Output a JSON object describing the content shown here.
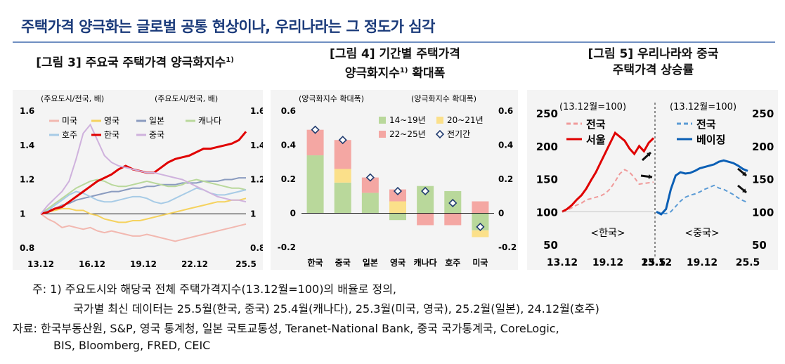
{
  "header": {
    "title": "주택가격 양극화는 글로벌 공통 현상이나, 우리나라는 그 정도가 심각"
  },
  "fig3": {
    "title": "[그림 3] 주요국 주택가격 양극화지수",
    "title_sup": "1)",
    "axis_label_left": "(주요도시/전국, 배)",
    "axis_label_right": "(주요도시/전국, 배)",
    "chart_data": {
      "type": "line",
      "ylim": [
        0.8,
        1.6
      ],
      "y_ticks": [
        "0.8",
        "1",
        "1.2",
        "1.4",
        "1.6"
      ],
      "x_ticks": [
        "13.12",
        "16.12",
        "19.12",
        "22.12",
        "25.5"
      ],
      "series": [
        {
          "name": "미국",
          "color": "#f2b8b0",
          "values": [
            1.0,
            0.97,
            0.95,
            0.92,
            0.93,
            0.92,
            0.91,
            0.92,
            0.9,
            0.89,
            0.9,
            0.89,
            0.88,
            0.87,
            0.87,
            0.88,
            0.87,
            0.86,
            0.85,
            0.84,
            0.85,
            0.86,
            0.87,
            0.88,
            0.89,
            0.9,
            0.91,
            0.92,
            0.93,
            0.94
          ]
        },
        {
          "name": "영국",
          "color": "#f5d25e",
          "values": [
            1.0,
            1.01,
            1.02,
            1.03,
            1.03,
            1.02,
            1.02,
            1.0,
            0.99,
            0.97,
            0.96,
            0.95,
            0.95,
            0.96,
            0.96,
            0.97,
            0.98,
            0.99,
            1.0,
            1.01,
            1.02,
            1.03,
            1.04,
            1.05,
            1.06,
            1.07,
            1.07,
            1.08,
            1.08,
            1.09
          ]
        },
        {
          "name": "일본",
          "color": "#8a9bbf",
          "values": [
            1.0,
            1.02,
            1.03,
            1.05,
            1.06,
            1.08,
            1.09,
            1.1,
            1.11,
            1.12,
            1.13,
            1.13,
            1.14,
            1.15,
            1.15,
            1.16,
            1.16,
            1.17,
            1.17,
            1.17,
            1.18,
            1.18,
            1.18,
            1.19,
            1.19,
            1.19,
            1.2,
            1.2,
            1.21,
            1.21
          ]
        },
        {
          "name": "캐나다",
          "color": "#b9d89b",
          "values": [
            1.0,
            1.03,
            1.06,
            1.09,
            1.12,
            1.15,
            1.17,
            1.19,
            1.2,
            1.19,
            1.17,
            1.16,
            1.16,
            1.17,
            1.18,
            1.19,
            1.18,
            1.17,
            1.16,
            1.16,
            1.17,
            1.19,
            1.2,
            1.19,
            1.18,
            1.17,
            1.16,
            1.15,
            1.15,
            1.14
          ]
        },
        {
          "name": "호주",
          "color": "#a7cbe6",
          "values": [
            1.0,
            1.02,
            1.05,
            1.08,
            1.11,
            1.13,
            1.12,
            1.1,
            1.08,
            1.07,
            1.07,
            1.08,
            1.09,
            1.1,
            1.1,
            1.09,
            1.07,
            1.06,
            1.07,
            1.09,
            1.11,
            1.13,
            1.15,
            1.14,
            1.12,
            1.11,
            1.11,
            1.12,
            1.13,
            1.14
          ]
        },
        {
          "name": "한국",
          "color": "#e00000",
          "values": [
            1.0,
            1.01,
            1.03,
            1.04,
            1.07,
            1.1,
            1.13,
            1.16,
            1.19,
            1.21,
            1.23,
            1.26,
            1.28,
            1.26,
            1.25,
            1.24,
            1.24,
            1.27,
            1.3,
            1.32,
            1.33,
            1.34,
            1.36,
            1.38,
            1.38,
            1.39,
            1.4,
            1.41,
            1.43,
            1.48
          ]
        },
        {
          "name": "중국",
          "color": "#cfb2dd",
          "values": [
            1.0,
            1.05,
            1.09,
            1.13,
            1.19,
            1.32,
            1.47,
            1.52,
            1.43,
            1.34,
            1.3,
            1.28,
            1.27,
            1.26,
            1.25,
            1.24,
            1.24,
            1.23,
            1.22,
            1.21,
            1.2,
            1.18,
            1.16,
            1.14,
            1.12,
            1.1,
            1.09,
            1.08,
            1.08,
            1.07
          ]
        }
      ]
    }
  },
  "fig4": {
    "title_line1": "[그림 4] 기간별 주택가격",
    "title_line2": "양극화지수",
    "title_sup": "1)",
    "title_line2b": "확대폭",
    "axis_label_left": "(양극화지수 확대폭)",
    "axis_label_right": "(양극화지수 확대폭)",
    "chart_data": {
      "type": "bar",
      "ylim": [
        -0.2,
        0.6
      ],
      "y_ticks": [
        "-0.2",
        "0",
        "0.2",
        "0.4",
        "0.6"
      ],
      "categories": [
        "한국",
        "중국",
        "일본",
        "영국",
        "캐나다",
        "호주",
        "미국"
      ],
      "series": [
        {
          "name": "14~19년",
          "color": "#b9d89b",
          "values": [
            0.34,
            0.18,
            0.12,
            -0.04,
            0.16,
            0.13,
            -0.1
          ]
        },
        {
          "name": "20~21년",
          "color": "#fbe08a",
          "values": [
            0.0,
            0.08,
            0.0,
            0.07,
            0.0,
            0.0,
            -0.04
          ]
        },
        {
          "name": "22~25년",
          "color": "#f4a7a3",
          "values": [
            0.15,
            0.17,
            0.09,
            0.07,
            -0.07,
            -0.07,
            0.07
          ]
        }
      ],
      "total": {
        "name": "전기간",
        "values": [
          0.49,
          0.43,
          0.21,
          0.13,
          0.13,
          0.06,
          -0.08
        ]
      }
    }
  },
  "fig5": {
    "title_line1": "[그림 5] 우리나라와 중국",
    "title_line2": "주택가격 상승률",
    "axis_label_left": "(13.12월=100)",
    "axis_label_right": "(13.12월=100)",
    "chart_data": {
      "type": "line",
      "ylim": [
        50,
        250
      ],
      "y_ticks": [
        "50",
        "100",
        "150",
        "200",
        "250"
      ],
      "panels": [
        {
          "label": "<한국>",
          "x_ticks": [
            "13.12",
            "19.12",
            "25.5"
          ],
          "series": [
            {
              "name": "전국",
              "color": "#f09a9a",
              "dashed": true,
              "values": [
                100,
                102,
                106,
                110,
                113,
                118,
                120,
                122,
                124,
                128,
                135,
                146,
                158,
                164,
                160,
                152,
                142,
                143,
                144,
                145
              ]
            },
            {
              "name": "서울",
              "color": "#e00000",
              "dashed": false,
              "values": [
                100,
                104,
                110,
                118,
                125,
                135,
                148,
                160,
                175,
                190,
                205,
                220,
                214,
                208,
                196,
                188,
                200,
                192,
                205,
                212
              ]
            }
          ]
        },
        {
          "label": "<중국>",
          "x_ticks": [
            "13.12",
            "19.12",
            "25.5"
          ],
          "series": [
            {
              "name": "전국",
              "color": "#5b9bd5",
              "dashed": true,
              "values": [
                100,
                98,
                97,
                100,
                108,
                116,
                122,
                125,
                127,
                130,
                134,
                137,
                140,
                136,
                134,
                130,
                126,
                121,
                117,
                114
              ]
            },
            {
              "name": "베이징",
              "color": "#0b5fb5",
              "dashed": false,
              "values": [
                100,
                96,
                104,
                134,
                155,
                160,
                158,
                159,
                162,
                166,
                168,
                170,
                172,
                176,
                178,
                176,
                174,
                170,
                165,
                162
              ]
            }
          ]
        }
      ]
    }
  },
  "notes": {
    "line1": "주: 1) 주요도시와 해당국 전체 주택가격지수(13.12월=100)의 배율로 정의,",
    "line2": "국가별 최신 데이터는 25.5월(한국, 중국) 25.4월(캐나다), 25.3월(미국, 영국), 25.2월(일본), 24.12월(호주)",
    "line3": "자료: 한국부동산원, S&P, 영국 통계청, 일본 국토교통성, Teranet-National Bank, 중국 국가통계국, CoreLogic,",
    "line4": "BIS, Bloomberg, FRED, CEIC"
  }
}
